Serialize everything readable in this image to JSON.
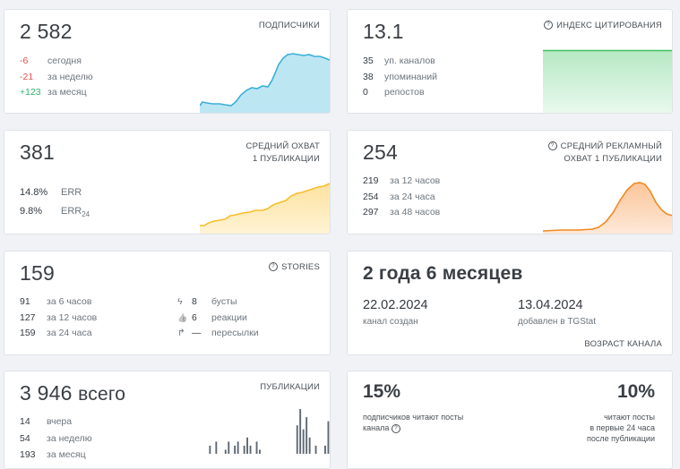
{
  "subs": {
    "value": "2 582",
    "label": "ПОДПИСЧИКИ",
    "rows": [
      {
        "n": "-6",
        "t": "сегодня"
      },
      {
        "n": "-21",
        "t": "за неделю"
      },
      {
        "n": "+123",
        "t": "за месяц"
      }
    ]
  },
  "cite": {
    "value": "13.1",
    "label": "ИНДЕКС ЦИТИРОВАНИЯ",
    "rows": [
      {
        "n": "35",
        "t": "уп. каналов"
      },
      {
        "n": "38",
        "t": "упоминаний"
      },
      {
        "n": "0",
        "t": "репостов"
      }
    ]
  },
  "reach": {
    "value": "381",
    "label1": "СРЕДНИЙ ОХВАТ",
    "label2": "1 ПУБЛИКАЦИИ",
    "rows": [
      {
        "n": "14.8%",
        "t": "ERR"
      },
      {
        "n": "9.8%",
        "t": "ERR",
        "sub": "24"
      }
    ]
  },
  "adreach": {
    "value": "254",
    "label1": "СРЕДНИЙ РЕКЛАМНЫЙ",
    "label2": "ОХВАТ 1 ПУБЛИКАЦИИ",
    "rows": [
      {
        "n": "219",
        "t": "за 12 часов"
      },
      {
        "n": "254",
        "t": "за 24 часа"
      },
      {
        "n": "297",
        "t": "за 48 часов"
      }
    ]
  },
  "stories": {
    "value": "159",
    "label": "STORIES",
    "rows": [
      {
        "n": "91",
        "t": "за 6 часов"
      },
      {
        "n": "127",
        "t": "за 12 часов"
      },
      {
        "n": "159",
        "t": "за 24 часа"
      }
    ],
    "rows_right": [
      {
        "icon": "bolt-icon",
        "glyph": "ϟ",
        "n": "8",
        "t": "бусты"
      },
      {
        "icon": "thumbs-up-icon",
        "glyph": "👍",
        "n": "6",
        "t": "реакции"
      },
      {
        "icon": "share-arrow-icon",
        "glyph": "↱",
        "n": "—",
        "t": "пересылки"
      }
    ]
  },
  "age": {
    "value": "2 года 6 месяцев",
    "created_date": "22.02.2024",
    "created_label": "канал создан",
    "added_date": "13.04.2024",
    "added_label": "добавлен в TGStat",
    "label": "ВОЗРАСТ КАНАЛА"
  },
  "posts": {
    "value": "3 946",
    "suffix": "всего",
    "label": "ПУБЛИКАЦИИ",
    "rows": [
      {
        "n": "14",
        "t": "вчера"
      },
      {
        "n": "54",
        "t": "за неделю"
      },
      {
        "n": "193",
        "t": "за месяц"
      }
    ],
    "bars": [
      0,
      0,
      0,
      2,
      0,
      3,
      0,
      0,
      1,
      3,
      0,
      2,
      3,
      0,
      2,
      4,
      2,
      0,
      3,
      1,
      0,
      0,
      0,
      0,
      0,
      0,
      0,
      0,
      0,
      0,
      0,
      7,
      11,
      6,
      9,
      4,
      0,
      2,
      0,
      0,
      2,
      8
    ]
  },
  "readers": {
    "pct1": "15%",
    "text1a": "подписчиков читают посты",
    "text1b": "канала",
    "pct2": "10%",
    "text2a": "читают посты",
    "text2b": "в первые 24 часа",
    "text2c": "после публикации"
  },
  "colors": {
    "subs_line": "#3ab0d8",
    "subs_fill": "#bde6f3",
    "cite_line": "#3fbf5f",
    "cite_fill": "#d3f1dc",
    "reach_line": "#f5bf2a",
    "reach_fill": "#fde9b0",
    "ad_line": "#f08a23",
    "ad_fill": "#fcd6b4",
    "bars": "#5f6872"
  }
}
